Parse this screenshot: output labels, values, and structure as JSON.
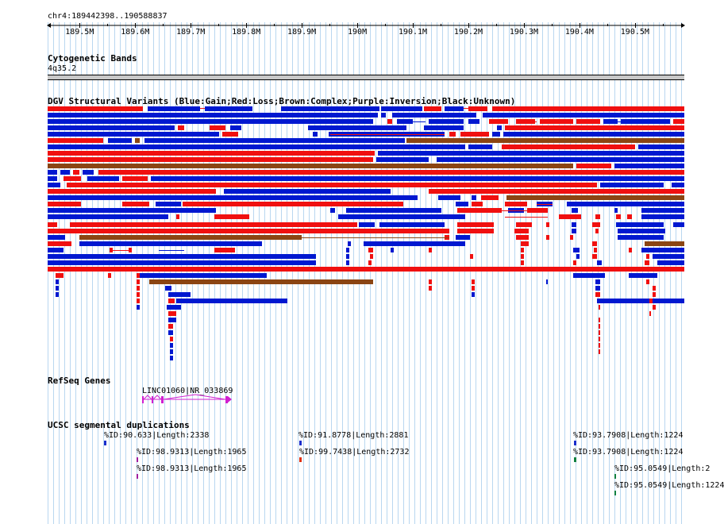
{
  "locus": "chr4:189442398..190588837",
  "ruler": {
    "start": 189442398,
    "end": 190588837,
    "ticks": [
      "189.5M",
      "189.6M",
      "189.7M",
      "189.8M",
      "189.9M",
      "190M",
      "190.1M",
      "190.2M",
      "190.3M",
      "190.4M",
      "190.5M"
    ]
  },
  "tracks": {
    "cytoband": {
      "title": "Cytogenetic Bands",
      "band": "4q35.2"
    },
    "dgv": {
      "title": "DGV Structural Variants (Blue:Gain;Red:Loss;Brown:Complex;Purple:Inversion;Black:Unknown)"
    },
    "refseq": {
      "title": "RefSeq Genes",
      "gene_label": "LINC01060|NR_033869"
    },
    "segdup": {
      "title": "UCSC segmental duplications",
      "items": [
        "%ID:90.633|Length:2338",
        "%ID:98.9313|Length:1965",
        "%ID:98.9313|Length:1965",
        "%ID:91.8778|Length:2881",
        "%ID:99.7438|Length:2732",
        "%ID:93.7908|Length:1224",
        "%ID:93.7908|Length:1224",
        "%ID:95.0549|Length:2",
        "%ID:95.0549|Length:1224"
      ]
    }
  },
  "colors": {
    "gain": "#0018d0",
    "loss": "#f01010",
    "complex": "#8b4513",
    "gene": "#d020d0",
    "segdup_blue": "#1a2ecc",
    "segdup_purple": "#a020a0",
    "segdup_red": "#e03010",
    "segdup_green": "#108040"
  }
}
